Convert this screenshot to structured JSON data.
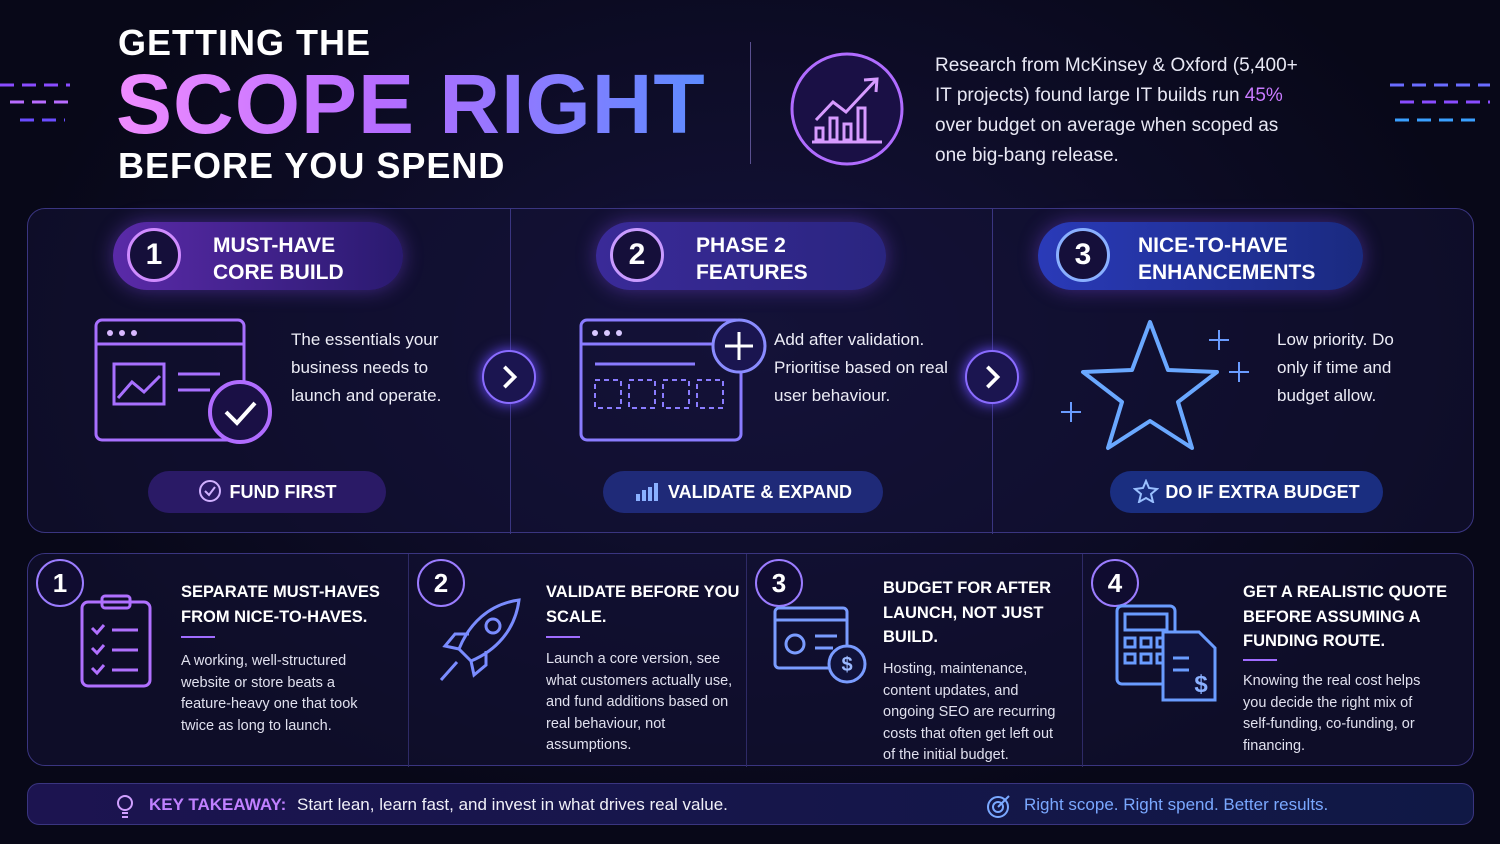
{
  "header": {
    "title_top": "GETTING THE",
    "title_main": "SCOPE RIGHT",
    "title_bottom": "BEFORE YOU SPEND",
    "research": [
      "Research from McKinsey & Oxford (5,400+ IT projects) found large IT builds run ",
      "45%",
      " over budget on average when scoped as one big-bang release."
    ]
  },
  "phases": [
    {
      "number": "1",
      "title": [
        "MUST-HAVE",
        "CORE BUILD"
      ],
      "description": "The essentials your business needs to launch and operate.",
      "button": "FUND FIRST"
    },
    {
      "number": "2",
      "title": [
        "PHASE 2",
        "FEATURES"
      ],
      "description": "Add after validation. Prioritise based on real user behaviour.",
      "button": "VALIDATE & EXPAND"
    },
    {
      "number": "3",
      "title": [
        "NICE-TO-HAVE",
        "ENHANCEMENTS"
      ],
      "description": "Low priority. Do only if time and budget allow.",
      "button": "DO IF EXTRA BUDGET"
    }
  ],
  "tips": [
    {
      "number": "1",
      "title": "SEPARATE MUST-HAVES FROM NICE-TO-HAVES.",
      "body": "A working, well-structured website or store beats a feature-heavy one that took twice as long to launch."
    },
    {
      "number": "2",
      "title": "VALIDATE BEFORE YOU SCALE.",
      "body": "Launch a core version, see what customers actually use, and fund additions based on real behaviour, not assumptions."
    },
    {
      "number": "3",
      "title": "BUDGET FOR AFTER LAUNCH, NOT JUST BUILD.",
      "body": "Hosting, maintenance, content updates, and ongoing SEO are recurring costs that often get left out of the initial budget."
    },
    {
      "number": "4",
      "title": "GET A REALISTIC QUOTE BEFORE ASSUMING A FUNDING ROUTE.",
      "body": "Knowing the real cost helps you decide the right mix of self-funding, co-funding, or financing."
    }
  ],
  "footer": {
    "label": "KEY TAKEAWAY:",
    "text": "Start lean, learn fast, and invest in what drives real value.",
    "tagline": "Right scope. Right spend. Better results."
  }
}
